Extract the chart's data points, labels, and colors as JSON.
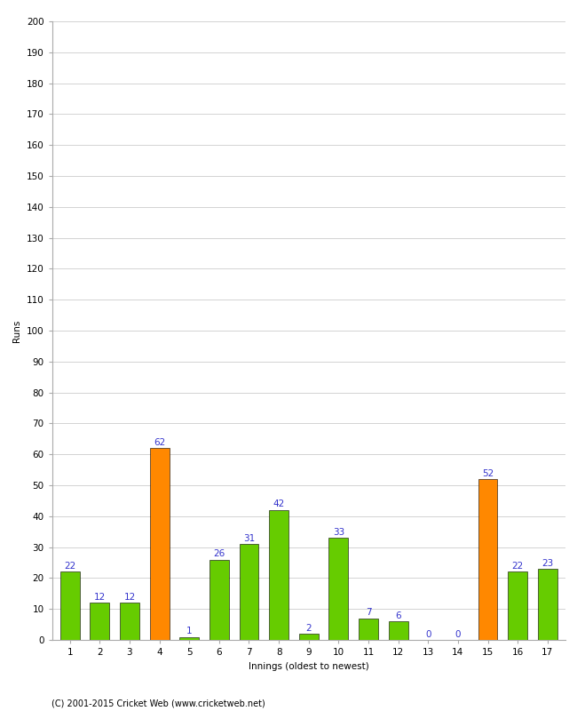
{
  "innings": [
    1,
    2,
    3,
    4,
    5,
    6,
    7,
    8,
    9,
    10,
    11,
    12,
    13,
    14,
    15,
    16,
    17
  ],
  "runs": [
    22,
    12,
    12,
    62,
    1,
    26,
    31,
    42,
    2,
    33,
    7,
    6,
    0,
    0,
    52,
    22,
    23
  ],
  "highlighted": [
    4,
    15
  ],
  "bar_color_normal": "#66cc00",
  "bar_color_highlight": "#ff8800",
  "label_color": "#3333cc",
  "xlabel": "Innings (oldest to newest)",
  "ylabel": "Runs",
  "ylim": [
    0,
    200
  ],
  "yticks": [
    0,
    10,
    20,
    30,
    40,
    50,
    60,
    70,
    80,
    90,
    100,
    110,
    120,
    130,
    140,
    150,
    160,
    170,
    180,
    190,
    200
  ],
  "copyright": "(C) 2001-2015 Cricket Web (www.cricketweb.net)",
  "background_color": "#ffffff",
  "grid_color": "#cccccc",
  "bar_width": 0.65,
  "label_fontsize": 7.5,
  "tick_fontsize": 7.5,
  "axis_label_fontsize": 7.5,
  "copyright_fontsize": 7
}
